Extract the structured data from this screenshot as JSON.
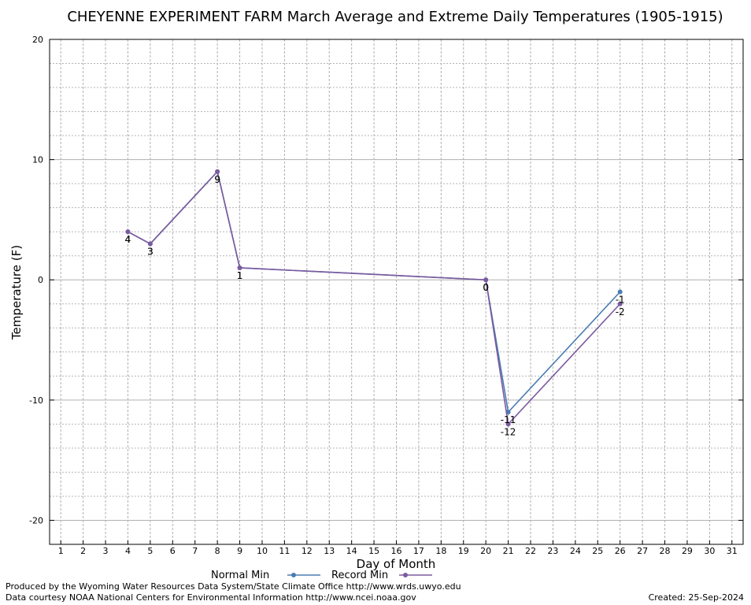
{
  "chart_data": {
    "type": "line",
    "title": "CHEYENNE EXPERIMENT FARM March Average and Extreme Daily Temperatures (1905-1915)",
    "xlabel": "Day of Month",
    "ylabel": "Temperature (F)",
    "xlim": [
      0.5,
      31.5
    ],
    "ylim": [
      -22,
      20
    ],
    "x_ticks": [
      1,
      2,
      3,
      4,
      5,
      6,
      7,
      8,
      9,
      10,
      11,
      12,
      13,
      14,
      15,
      16,
      17,
      18,
      19,
      20,
      21,
      22,
      23,
      24,
      25,
      26,
      27,
      28,
      29,
      30,
      31
    ],
    "y_ticks": [
      20,
      10,
      0,
      -10,
      -20
    ],
    "grid": true,
    "legend_position": "bottom",
    "series": [
      {
        "name": "Normal Min",
        "color": "#4a7db3",
        "x": [
          4,
          5,
          8,
          9,
          20,
          21,
          26
        ],
        "y": [
          4,
          3,
          9,
          1,
          0,
          -11,
          -1
        ],
        "labels": [
          "4",
          "3",
          "9",
          "1",
          "0",
          "-11",
          "-1"
        ]
      },
      {
        "name": "Record Min",
        "color": "#7b5a9e",
        "x": [
          4,
          5,
          8,
          9,
          20,
          21,
          26
        ],
        "y": [
          4,
          3,
          9,
          1,
          0,
          -12,
          -2
        ],
        "labels": [
          "4",
          "3",
          "9",
          "1",
          "0",
          "-12",
          "-2"
        ]
      }
    ]
  },
  "footer": {
    "produced_by": "Produced by the Wyoming Water Resources Data System/State Climate Office http://www.wrds.uwyo.edu",
    "courtesy": "Data courtesy NOAA National Centers for Environmental Information http://www.ncei.noaa.gov",
    "created": "Created: 25-Sep-2024"
  }
}
